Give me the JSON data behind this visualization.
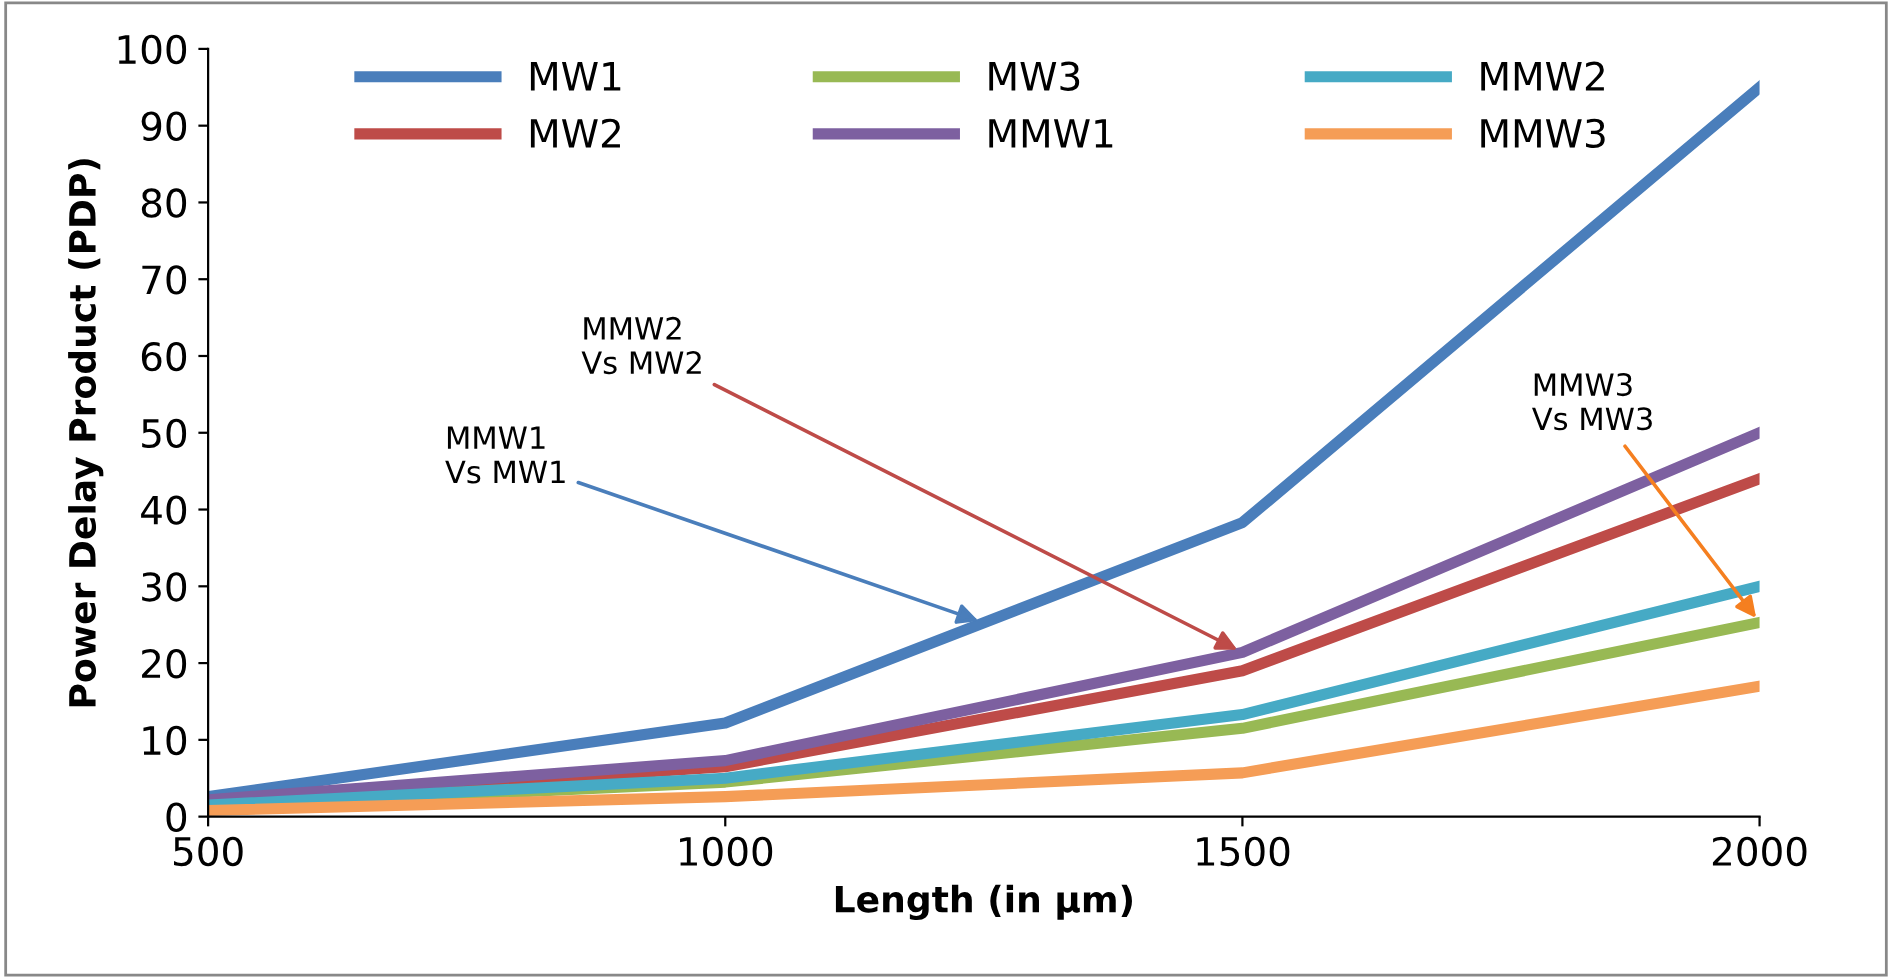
{
  "chart_data": {
    "type": "line",
    "xlabel": "Length (in µm)",
    "ylabel": "Power Delay Product (PDP)",
    "x": [
      500,
      1000,
      1500,
      2000
    ],
    "series": [
      {
        "name": "MW1",
        "color": "#4a7ebb",
        "values": [
          2.6,
          12.2,
          38.3,
          95
        ]
      },
      {
        "name": "MW2",
        "color": "#be4b48",
        "values": [
          2,
          6.5,
          19,
          44
        ]
      },
      {
        "name": "MW3",
        "color": "#98b954",
        "values": [
          1.3,
          4.5,
          11.5,
          25.3
        ]
      },
      {
        "name": "MMW1",
        "color": "#7d60a0",
        "values": [
          2.2,
          7.3,
          21.4,
          50
        ]
      },
      {
        "name": "MMW2",
        "color": "#46aac5",
        "values": [
          1.5,
          5,
          13.3,
          30
        ]
      },
      {
        "name": "MMW3",
        "color": "#f59d56",
        "values": [
          0.8,
          2.6,
          5.7,
          17
        ]
      }
    ],
    "xlim": [
      500,
      2000
    ],
    "xticks": [
      500,
      1000,
      1500,
      2000
    ],
    "ylim": [
      0,
      100
    ],
    "yticks": [
      0,
      10,
      20,
      30,
      40,
      50,
      60,
      70,
      80,
      90,
      100
    ],
    "legend": "top",
    "marker": "none",
    "line_style": "solid",
    "annotations": [
      {
        "text": "MMW1\nVs MW1",
        "x": 1250,
        "y": 25.25
      },
      {
        "text": "MMW2\nVs MW2",
        "x": 1500,
        "y": 21.4
      },
      {
        "text": "MMW3\nVs MW3",
        "x": 2000,
        "y": 25.3
      }
    ]
  }
}
